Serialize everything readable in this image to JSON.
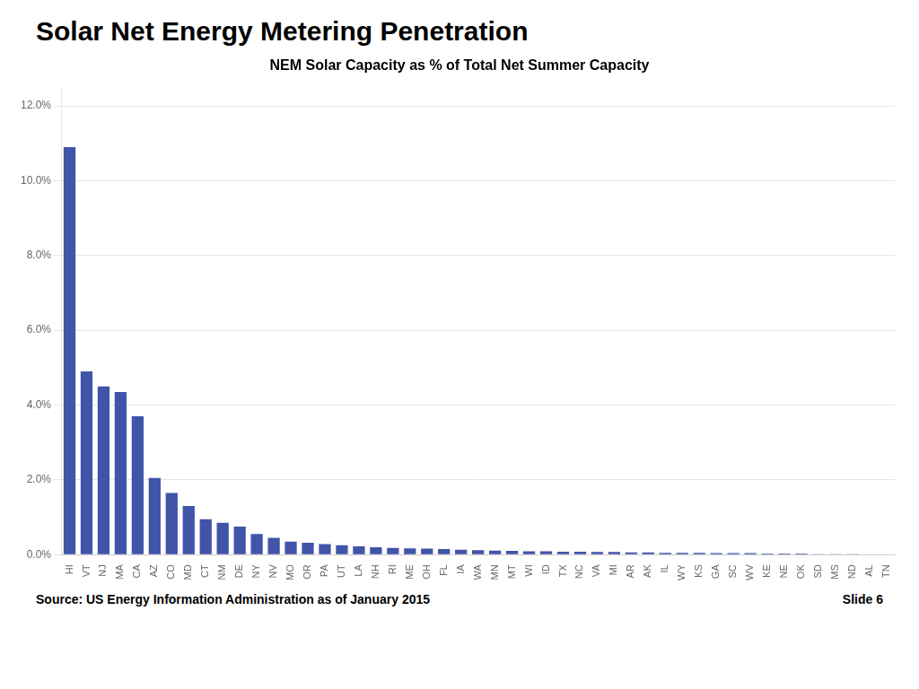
{
  "chart_data": {
    "type": "bar",
    "title": "Solar Net Energy Metering Penetration",
    "subtitle": "NEM Solar Capacity as % of Total Net Summer Capacity",
    "annotations": [
      "Source: US Energy Information Administration as of January 2015",
      "Slide 6"
    ],
    "categories": [
      "HI",
      "VT",
      "NJ",
      "MA",
      "CA",
      "AZ",
      "CO",
      "MD",
      "CT",
      "NM",
      "DE",
      "NY",
      "NV",
      "MO",
      "OR",
      "PA",
      "UT",
      "LA",
      "NH",
      "RI",
      "ME",
      "OH",
      "FL",
      "IA",
      "WA",
      "MN",
      "MT",
      "WI",
      "ID",
      "TX",
      "NC",
      "VA",
      "MI",
      "AR",
      "AK",
      "IL",
      "WY",
      "KS",
      "GA",
      "SC",
      "WV",
      "KE",
      "NE",
      "OK",
      "SD",
      "MS",
      "ND",
      "AL",
      "TN"
    ],
    "values": [
      10.9,
      4.9,
      4.5,
      4.35,
      3.7,
      2.05,
      1.65,
      1.3,
      0.95,
      0.85,
      0.75,
      0.55,
      0.45,
      0.35,
      0.32,
      0.28,
      0.25,
      0.22,
      0.2,
      0.18,
      0.17,
      0.16,
      0.15,
      0.13,
      0.12,
      0.11,
      0.1,
      0.09,
      0.09,
      0.08,
      0.08,
      0.07,
      0.07,
      0.06,
      0.06,
      0.05,
      0.05,
      0.05,
      0.04,
      0.04,
      0.04,
      0.03,
      0.03,
      0.03,
      0.02,
      0.02,
      0.02,
      0.01,
      0.01
    ],
    "color": "#4055a8",
    "ylim": [
      0,
      12.5
    ],
    "yticks": [
      {
        "value": 0,
        "label": "0.0%"
      },
      {
        "value": 2,
        "label": "2.0%"
      },
      {
        "value": 4,
        "label": "4.0%"
      },
      {
        "value": 6,
        "label": "6.0%"
      },
      {
        "value": 8,
        "label": "8.0%"
      },
      {
        "value": 10,
        "label": "10.0%"
      },
      {
        "value": 12,
        "label": "12.0%"
      }
    ],
    "grid": true
  }
}
